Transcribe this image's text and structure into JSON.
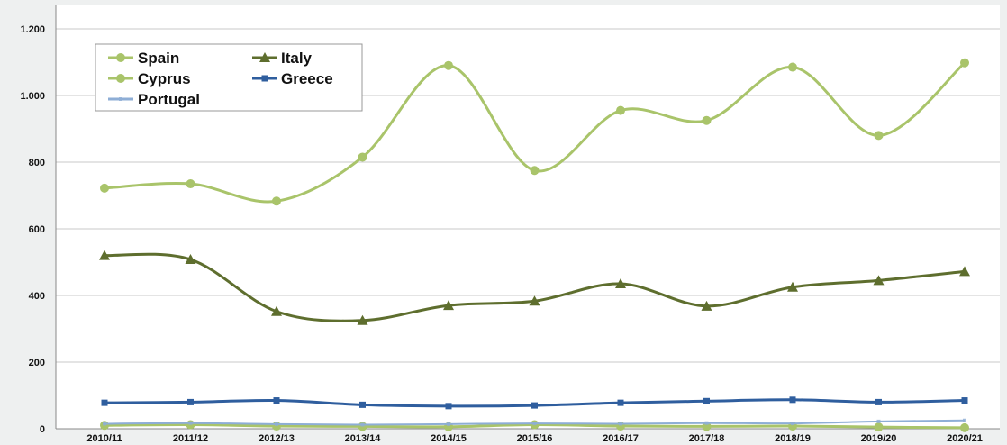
{
  "chart_data": {
    "type": "line",
    "title": "",
    "xlabel": "",
    "ylabel": "",
    "categories": [
      "2010/11",
      "2011/12",
      "2012/13",
      "2013/14",
      "2014/15",
      "2015/16",
      "2016/17",
      "2017/18",
      "2018/19",
      "2019/20",
      "2020/21"
    ],
    "ylim": [
      0,
      1200
    ],
    "y_ticks": [
      0,
      200,
      400,
      600,
      800,
      1000,
      1200
    ],
    "y_tick_labels": [
      "0",
      "200",
      "400",
      "600",
      "800",
      "1.000",
      "1.200"
    ],
    "grid": true,
    "legend_position": "top-left",
    "series": [
      {
        "name": "Spain",
        "color": "#a9c46a",
        "marker": "circle",
        "values": [
          722,
          735,
          683,
          815,
          1090,
          775,
          955,
          925,
          1085,
          880,
          1098
        ]
      },
      {
        "name": "Italy",
        "color": "#5e6e2e",
        "marker": "triangle",
        "values": [
          520,
          508,
          352,
          325,
          370,
          383,
          435,
          368,
          425,
          445,
          472
        ]
      },
      {
        "name": "Cyprus",
        "color": "#a9c46a",
        "marker": "circle",
        "values": [
          10,
          12,
          8,
          7,
          6,
          12,
          8,
          7,
          8,
          5,
          3
        ]
      },
      {
        "name": "Greece",
        "color": "#2f5e9e",
        "marker": "square",
        "values": [
          78,
          80,
          85,
          72,
          68,
          70,
          78,
          83,
          87,
          80,
          85
        ]
      },
      {
        "name": "Portugal",
        "color": "#8eaed6",
        "marker": "none",
        "values": [
          15,
          17,
          14,
          12,
          14,
          16,
          15,
          17,
          16,
          22,
          25
        ]
      }
    ]
  }
}
